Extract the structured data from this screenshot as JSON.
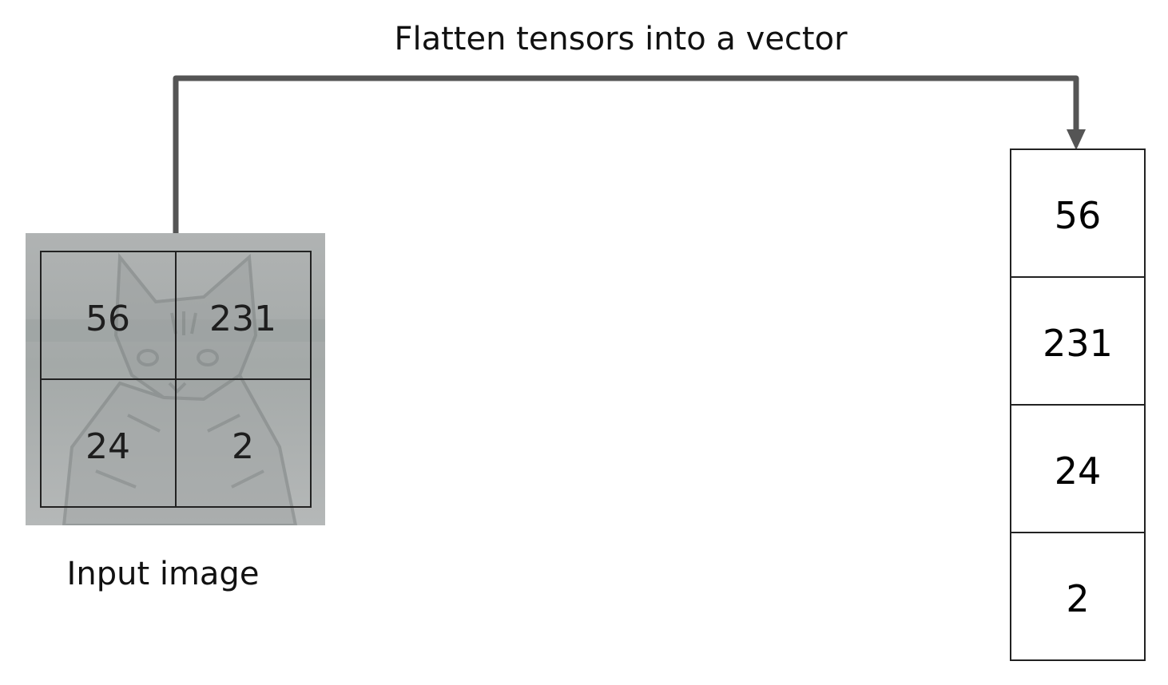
{
  "title": "Flatten tensors into a vector",
  "input_label": "Input image",
  "grid": [
    [
      "56",
      "231"
    ],
    [
      "24",
      "2"
    ]
  ],
  "vector": [
    "56",
    "231",
    "24",
    "2"
  ],
  "image_subject": "tabby-cat-photo",
  "colors": {
    "arrow": "#555555",
    "image_wash": "#a9acac",
    "cell_border": "#222222"
  }
}
